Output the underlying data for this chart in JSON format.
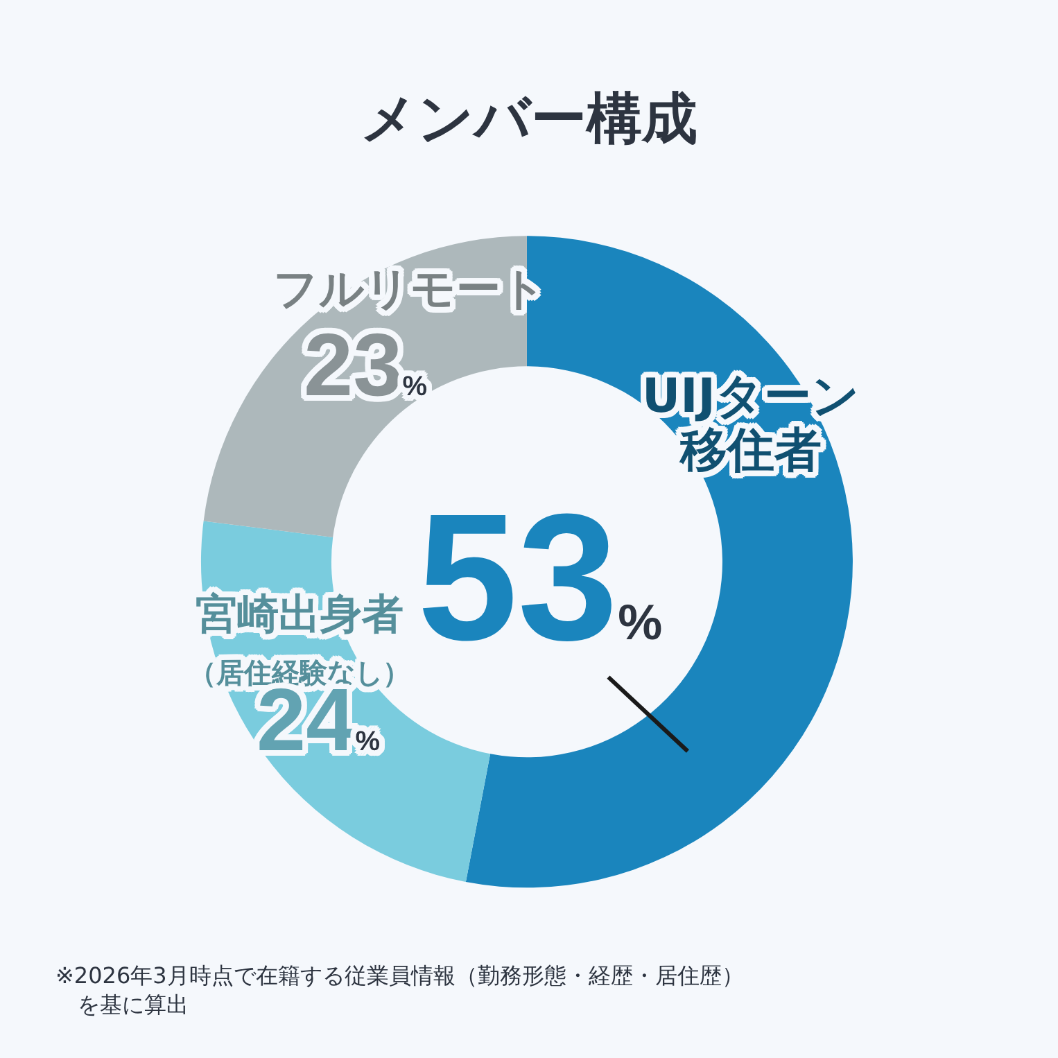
{
  "chart_data": {
    "type": "donut",
    "title": "メンバー構成",
    "categories": [
      "UIJターン移住者",
      "宮崎出身者（居住経験なし）",
      "フルリモート"
    ],
    "values": [
      53,
      24,
      23
    ],
    "value_labels": [
      "53%",
      "24%",
      "23%"
    ],
    "colors": [
      "#1a85bd",
      "#7accde",
      "#adb8bb"
    ],
    "legend": false,
    "annotations": [
      "※2026年3月時点で在籍する従業員情報（勤務形態・経歴・居住歴）を基に算出"
    ]
  }
}
